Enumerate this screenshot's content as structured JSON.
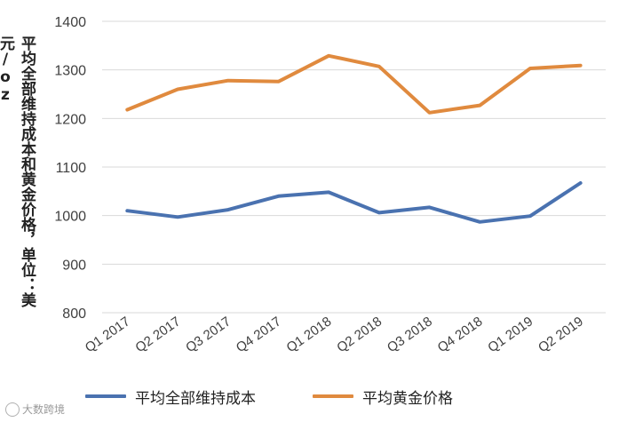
{
  "chart_data": {
    "type": "line",
    "title": "",
    "xlabel": "",
    "ylabel": "平均全部维持成本和黄金价格，单位：美元/oz",
    "categories": [
      "Q1 2017",
      "Q2 2017",
      "Q3 2017",
      "Q4 2017",
      "Q1 2018",
      "Q2 2018",
      "Q3 2018",
      "Q4 2018",
      "Q1 2019",
      "Q2 2019"
    ],
    "ylim": [
      800,
      1400
    ],
    "yticks": [
      800,
      900,
      1000,
      1100,
      1200,
      1300,
      1400
    ],
    "grid": true,
    "legend": "bottom",
    "series": [
      {
        "name": "平均全部维持成本",
        "color": "#4a72b0",
        "values": [
          1010,
          997,
          1012,
          1040,
          1048,
          1006,
          1017,
          987,
          999,
          1067
        ]
      },
      {
        "name": "平均黄金价格",
        "color": "#e08a3e",
        "values": [
          1218,
          1260,
          1278,
          1276,
          1329,
          1307,
          1212,
          1227,
          1303,
          1309
        ]
      }
    ]
  },
  "watermark": {
    "text": "大数跨境",
    "icon": "watermark-logo-icon"
  }
}
